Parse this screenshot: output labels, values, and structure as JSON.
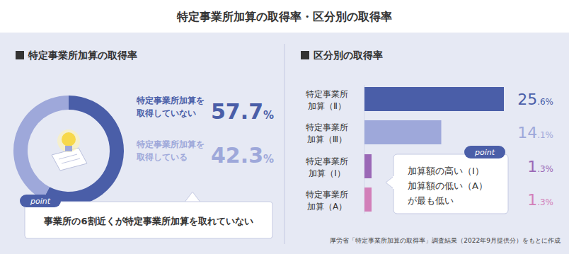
{
  "title": "特定事業所加算の取得率・区分別の取得率",
  "source": "厚労省「特定事業所加算の取得率」調査結果（2022年9月提供分）をもとに作成",
  "chart_data": [
    {
      "type": "pie",
      "title": "特定事業所加算の取得率",
      "categories": [
        "特定事業所加算を\n取得していない",
        "特定事業所加算を\n取得している"
      ],
      "values": [
        57.7,
        42.3
      ],
      "value_labels": [
        "57.7%",
        "42.3%"
      ],
      "colors": [
        "#4a5ea8",
        "#9ea8da"
      ],
      "data_labels": true,
      "annotations": [
        {
          "tag": "point",
          "text": "事業所の6割近くが特定事業所加算を取れていない"
        }
      ]
    },
    {
      "type": "bar",
      "orientation": "horizontal",
      "title": "区分別の取得率",
      "categories": [
        "特定事業所\n加算（Ⅱ）",
        "特定事業所\n加算（Ⅲ）",
        "特定事業所\n加算（Ⅰ）",
        "特定事業所\n加算（A）"
      ],
      "values": [
        25.6,
        14.1,
        1.3,
        1.3
      ],
      "value_labels": [
        "25.6%",
        "14.1%",
        "1.3%",
        "1.3%"
      ],
      "colors": [
        "#4a5ea8",
        "#9ea8da",
        "#9a68b6",
        "#d27fb9"
      ],
      "xlim": [
        0,
        25.6
      ],
      "tick_labels": false,
      "data_labels": true,
      "annotations": [
        {
          "tag": "point",
          "text": "加算額の高い（Ⅰ）\n加算額の低い（A）\nが最も低い"
        }
      ]
    }
  ]
}
